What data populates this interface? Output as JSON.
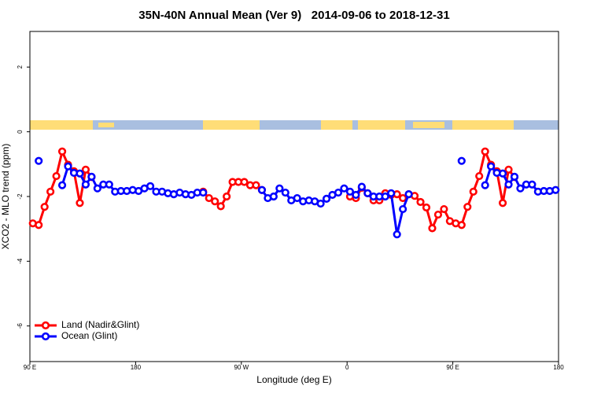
{
  "chart_data": {
    "type": "line",
    "title": "35N-40N Annual Mean (Ver 9)   2014-09-06 to 2018-12-31",
    "xlabel": "Longitude (deg E)",
    "ylabel": "XCO2 - MLO trend (ppm)",
    "xlim": [
      90,
      540
    ],
    "ylim": [
      -7.1,
      3.1
    ],
    "xticks": [
      {
        "value": 90,
        "label": "90 E"
      },
      180,
      {
        "value": 270,
        "label": "90 W"
      },
      {
        "value": 360,
        "label": "0"
      },
      {
        "value": 450,
        "label": "90 E"
      },
      {
        "value": 540,
        "label": "180"
      }
    ],
    "yticks": [
      -6,
      -4,
      -2,
      0,
      2
    ],
    "legend": "bottom-left",
    "grid": false,
    "x": [
      92.5,
      97.5,
      102.5,
      107.5,
      112.5,
      117.5,
      122.5,
      127.5,
      132.5,
      137.5,
      142.5,
      147.5,
      152.5,
      157.5,
      162.5,
      167.5,
      172.5,
      177.5,
      182.5,
      187.5,
      192.5,
      197.5,
      202.5,
      207.5,
      212.5,
      217.5,
      222.5,
      227.5,
      232.5,
      237.5,
      242.5,
      247.5,
      252.5,
      257.5,
      262.5,
      267.5,
      272.5,
      277.5,
      282.5,
      287.5,
      292.5,
      297.5,
      302.5,
      307.5,
      312.5,
      317.5,
      322.5,
      327.5,
      332.5,
      337.5,
      342.5,
      347.5,
      352.5,
      357.5,
      362.5,
      367.5,
      372.5,
      377.5,
      382.5,
      387.5,
      392.5,
      397.5,
      402.5,
      407.5,
      412.5,
      417.5,
      422.5,
      427.5,
      432.5,
      437.5,
      442.5,
      447.5,
      452.5,
      457.5,
      462.5,
      467.5,
      472.5,
      477.5,
      482.5,
      487.5,
      492.5,
      497.5,
      502.5,
      507.5,
      512.5,
      517.5,
      522.5,
      527.5,
      532.5,
      537.5
    ],
    "series": [
      {
        "name": "Land (Nadir&Glint)",
        "color": "#ff0000",
        "values": [
          -2.83,
          -2.88,
          -2.32,
          -1.85,
          -1.37,
          -0.61,
          -1.02,
          -1.22,
          -2.2,
          -1.17,
          -1.4,
          null,
          null,
          null,
          null,
          null,
          null,
          null,
          null,
          null,
          null,
          null,
          null,
          null,
          null,
          null,
          null,
          null,
          null,
          -1.85,
          -2.05,
          -2.15,
          -2.3,
          -2.0,
          -1.55,
          -1.55,
          -1.55,
          -1.65,
          -1.65,
          -1.8,
          null,
          null,
          null,
          null,
          null,
          null,
          null,
          null,
          null,
          null,
          null,
          null,
          null,
          null,
          -2.0,
          -2.05,
          -1.73,
          -1.9,
          -2.12,
          -2.12,
          -1.9,
          -1.95,
          -1.93,
          -2.05,
          -1.93,
          -1.98,
          -2.17,
          -2.34,
          -2.98,
          -2.56,
          -2.39,
          -2.76,
          -2.83,
          -2.88,
          -2.32,
          -1.85,
          -1.37,
          -0.61,
          -1.02,
          -1.22,
          -2.2,
          -1.17,
          -1.4,
          null,
          null,
          null,
          null,
          null,
          null,
          null
        ]
      },
      {
        "name": "Ocean (Glint)",
        "color": "#0000ff",
        "values": [
          null,
          -0.9,
          null,
          null,
          null,
          -1.65,
          -1.07,
          -1.27,
          -1.29,
          -1.63,
          -1.39,
          -1.75,
          -1.63,
          -1.63,
          -1.85,
          -1.83,
          -1.83,
          -1.8,
          -1.83,
          -1.75,
          -1.68,
          -1.85,
          -1.85,
          -1.9,
          -1.93,
          -1.88,
          -1.93,
          -1.95,
          -1.88,
          -1.88,
          null,
          null,
          null,
          null,
          null,
          null,
          null,
          null,
          null,
          -1.8,
          -2.05,
          -2.0,
          -1.75,
          -1.88,
          -2.12,
          -2.05,
          -2.15,
          -2.12,
          -2.15,
          -2.22,
          -2.07,
          -1.95,
          -1.88,
          -1.75,
          -1.85,
          -1.95,
          -1.7,
          -1.9,
          -2.0,
          -2.0,
          -2.0,
          -1.9,
          -3.17,
          -2.39,
          -1.93,
          null,
          null,
          null,
          null,
          null,
          null,
          null,
          null,
          -0.9,
          null,
          null,
          null,
          -1.65,
          -1.07,
          -1.27,
          -1.29,
          -1.63,
          -1.39,
          -1.75,
          -1.63,
          -1.63,
          -1.85,
          -1.83,
          -1.83,
          -1.8
        ]
      }
    ]
  }
}
